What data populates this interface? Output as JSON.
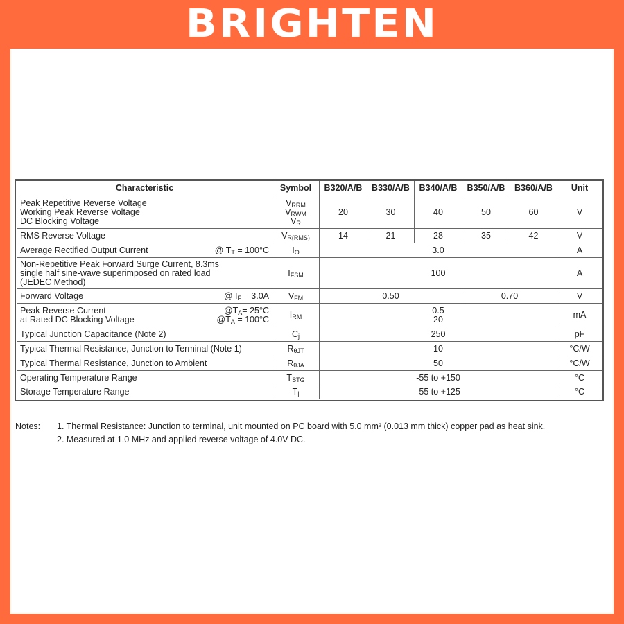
{
  "brand": "BRIGHTEN",
  "colors": {
    "frame": "#FF6B3D",
    "text": "#222222"
  },
  "table": {
    "headers": [
      "Characteristic",
      "Symbol",
      "B320/A/B",
      "B330/A/B",
      "B340/A/B",
      "B350/A/B",
      "B360/A/B",
      "Unit"
    ],
    "rows": [
      {
        "name": "peak-repetitive-reverse-voltage",
        "char": [
          "Peak Repetitive Reverse Voltage",
          "Working Peak Reverse Voltage",
          "DC Blocking Voltage"
        ],
        "cond": [],
        "sym": [
          [
            "V",
            "RRM"
          ],
          [
            "V",
            "RWM"
          ],
          [
            "V",
            "R"
          ]
        ],
        "vals": [
          "20",
          "30",
          "40",
          "50",
          "60"
        ],
        "span": [
          1,
          1,
          1,
          1,
          1
        ],
        "unit": "V",
        "h": 47
      },
      {
        "name": "rms-reverse-voltage",
        "char": [
          "RMS Reverse Voltage"
        ],
        "cond": [],
        "sym": [
          [
            "V",
            "R(RMS)"
          ]
        ],
        "vals": [
          "14",
          "21",
          "28",
          "35",
          "42"
        ],
        "span": [
          1,
          1,
          1,
          1,
          1
        ],
        "unit": "V",
        "h": 21
      },
      {
        "name": "average-rectified-output-current",
        "char": [
          "Average Rectified Output Current"
        ],
        "cond": [
          [
            "@ T",
            "T",
            " = 100°C"
          ]
        ],
        "sym": [
          [
            "I",
            "O"
          ]
        ],
        "vals": [
          "3.0"
        ],
        "span": [
          5
        ],
        "unit": "A",
        "h": 21
      },
      {
        "name": "non-repetitive-peak-forward-surge-current",
        "char": [
          "Non-Repetitive Peak Forward Surge Current, 8.3ms",
          "single half sine-wave superimposed on rated load",
          "(JEDEC Method)"
        ],
        "cond": [],
        "sym": [
          [
            "I",
            "FSM"
          ]
        ],
        "vals": [
          "100"
        ],
        "span": [
          5
        ],
        "unit": "A",
        "h": 45
      },
      {
        "name": "forward-voltage",
        "char": [
          "Forward Voltage"
        ],
        "cond": [
          [
            "@ I",
            "F",
            " = 3.0A"
          ]
        ],
        "sym": [
          [
            "V",
            "FM"
          ]
        ],
        "vals": [
          "0.50",
          "0.70"
        ],
        "span": [
          3,
          2
        ],
        "unit": "V",
        "h": 21
      },
      {
        "name": "peak-reverse-current",
        "char": [
          "Peak Reverse Current",
          "at Rated DC Blocking Voltage"
        ],
        "cond": [
          [
            "@T",
            "A",
            "=  25°C"
          ],
          [
            "@T",
            "A",
            " = 100°C"
          ]
        ],
        "sym": [
          [
            "I",
            "RM"
          ]
        ],
        "vals": [
          "0.5\n20"
        ],
        "span": [
          5
        ],
        "unit": "mA",
        "h": 34
      },
      {
        "name": "typical-junction-capacitance",
        "char": [
          "Typical Junction Capacitance (Note 2)"
        ],
        "cond": [],
        "sym": [
          [
            "C",
            "j"
          ]
        ],
        "vals": [
          "250"
        ],
        "span": [
          5
        ],
        "unit": "pF",
        "h": 21
      },
      {
        "name": "thermal-resistance-junction-terminal",
        "char": [
          "Typical Thermal Resistance, Junction to Terminal (Note 1)"
        ],
        "cond": [],
        "sym": [
          [
            "R",
            "θJT"
          ]
        ],
        "vals": [
          "10"
        ],
        "span": [
          5
        ],
        "unit": "°C/W",
        "h": 21
      },
      {
        "name": "thermal-resistance-junction-ambient",
        "char": [
          "Typical Thermal Resistance, Junction to Ambient"
        ],
        "cond": [],
        "sym": [
          [
            "R",
            "θJA"
          ]
        ],
        "vals": [
          "50"
        ],
        "span": [
          5
        ],
        "unit": "°C/W",
        "h": 21
      },
      {
        "name": "operating-temperature-range",
        "char": [
          "Operating Temperature Range"
        ],
        "cond": [],
        "sym": [
          [
            "T",
            "STG"
          ]
        ],
        "vals": [
          "-55 to +150"
        ],
        "span": [
          5
        ],
        "unit": "°C",
        "h": 21
      },
      {
        "name": "storage-temperature-range",
        "char": [
          "Storage Temperature Range"
        ],
        "cond": [],
        "sym": [
          [
            "T",
            "j"
          ]
        ],
        "vals": [
          "-55 to +125"
        ],
        "span": [
          5
        ],
        "unit": "°C",
        "h": 21
      }
    ]
  },
  "notes": {
    "label": "Notes:",
    "items": [
      "1. Thermal Resistance: Junction to terminal, unit mounted on PC board with 5.0 mm² (0.013 mm thick) copper pad as heat sink.",
      "2. Measured at 1.0 MHz and applied reverse voltage of 4.0V DC."
    ]
  }
}
